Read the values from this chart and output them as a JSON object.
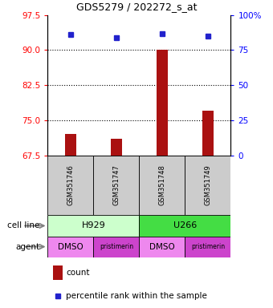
{
  "title": "GDS5279 / 202272_s_at",
  "samples": [
    "GSM351746",
    "GSM351747",
    "GSM351748",
    "GSM351749"
  ],
  "bar_values": [
    72.0,
    71.0,
    90.0,
    77.0
  ],
  "percentile_values": [
    86,
    84,
    87,
    85
  ],
  "bar_color": "#AA1111",
  "percentile_color": "#2222CC",
  "left_yticks": [
    67.5,
    75.0,
    82.5,
    90.0,
    97.5
  ],
  "right_yticks": [
    0,
    25,
    50,
    75,
    100
  ],
  "right_yticklabels": [
    "0",
    "25",
    "50",
    "75",
    "100%"
  ],
  "ylim_left": [
    67.5,
    97.5
  ],
  "ylim_right": [
    0,
    100
  ],
  "hlines": [
    75.0,
    82.5,
    90.0
  ],
  "cell_line_h929_color": "#ccffcc",
  "cell_line_u266_color": "#44dd44",
  "agent_dmso_color": "#ee88ee",
  "agent_pristimerin_color": "#cc44cc",
  "sample_box_color": "#cccccc",
  "cell_line_label": "cell line",
  "agent_label": "agent",
  "legend_count": "count",
  "legend_percentile": "percentile rank within the sample",
  "bar_width": 0.25
}
